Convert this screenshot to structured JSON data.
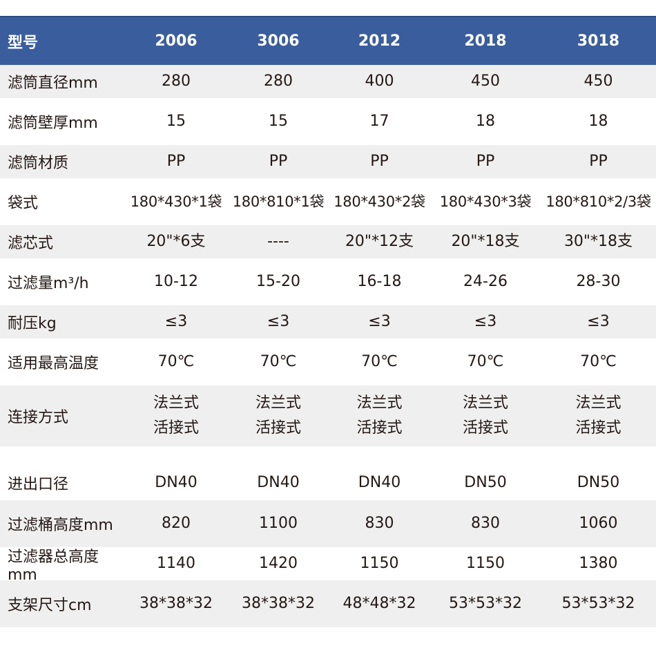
{
  "header": {
    "label": "型号",
    "models": [
      "2006",
      "3006",
      "2012",
      "2018",
      "3018"
    ]
  },
  "rows": [
    {
      "label": "滤筒直径mm",
      "values": [
        "280",
        "280",
        "400",
        "450",
        "450"
      ]
    },
    {
      "label": "滤筒壁厚mm",
      "values": [
        "15",
        "15",
        "17",
        "18",
        "18"
      ]
    },
    {
      "label": "滤筒材质",
      "values": [
        "PP",
        "PP",
        "PP",
        "PP",
        "PP"
      ]
    },
    {
      "label": "袋式",
      "values": [
        "180*430*1袋",
        "180*810*1袋",
        "180*430*2袋",
        "180*430*3袋",
        "180*810*2/3袋"
      ]
    },
    {
      "label": "滤芯式",
      "values": [
        "20\"*6支",
        "----",
        "20\"*12支",
        "20\"*18支",
        "30\"*18支"
      ]
    },
    {
      "label": "过滤量m³/h",
      "values": [
        "10-12",
        "15-20",
        "16-18",
        "24-26",
        "28-30"
      ]
    },
    {
      "label": "耐压kg",
      "values": [
        "≤3",
        "≤3",
        "≤3",
        "≤3",
        "≤3"
      ]
    },
    {
      "label": "适用最高温度",
      "values": [
        "70℃",
        "70℃",
        "70℃",
        "70℃",
        "70℃"
      ]
    },
    {
      "label": "连接方式",
      "values": [
        [
          "法兰式",
          "活接式"
        ],
        [
          "法兰式",
          "活接式"
        ],
        [
          "法兰式",
          "活接式"
        ],
        [
          "法兰式",
          "活接式"
        ],
        [
          "法兰式",
          "活接式"
        ]
      ]
    },
    {
      "label": "进出口径",
      "values": [
        "DN40",
        "DN40",
        "DN40",
        "DN50",
        "DN50"
      ]
    },
    {
      "label": "过滤桶高度mm",
      "values": [
        "820",
        "1100",
        "830",
        "830",
        "1060"
      ]
    },
    {
      "label": "过滤器总高度mm",
      "values": [
        "1140",
        "1420",
        "1150",
        "1150",
        "1380"
      ]
    },
    {
      "label": "支架尺寸cm",
      "values": [
        "38*38*32",
        "38*38*32",
        "48*48*32",
        "53*53*32",
        "53*53*32"
      ]
    }
  ]
}
